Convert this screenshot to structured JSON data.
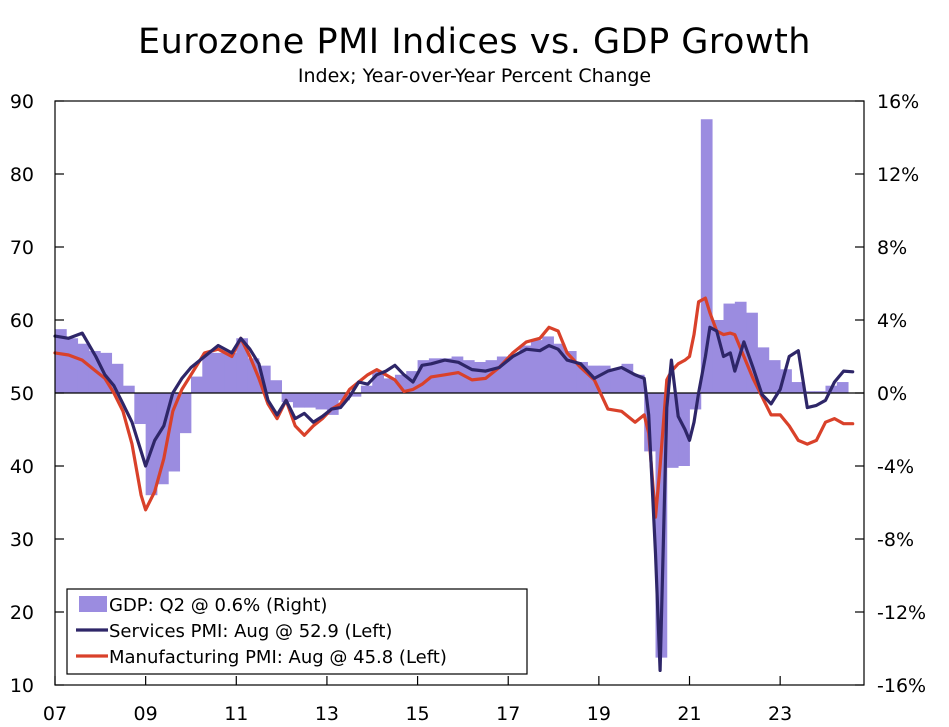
{
  "chart_data": {
    "type": "bar+line",
    "title": "Eurozone PMI Indices vs. GDP Growth",
    "subtitle": "Index; Year-over-Year Percent Change",
    "x_tick_labels": [
      "07",
      "09",
      "11",
      "13",
      "15",
      "17",
      "19",
      "21",
      "23"
    ],
    "x_tick_years": [
      2007,
      2009,
      2011,
      2013,
      2015,
      2017,
      2019,
      2021,
      2023
    ],
    "x_range": [
      2007.0,
      2024.85
    ],
    "left_axis": {
      "range": [
        10,
        90
      ],
      "ticks": [
        "10",
        "20",
        "30",
        "40",
        "50",
        "60",
        "70",
        "80",
        "90"
      ],
      "tick_values": [
        10,
        20,
        30,
        40,
        50,
        60,
        70,
        80,
        90
      ]
    },
    "right_axis": {
      "range": [
        -16,
        16
      ],
      "ticks": [
        "-16%",
        "-12%",
        "-8%",
        "-4%",
        "0%",
        "4%",
        "8%",
        "12%",
        "16%"
      ],
      "tick_values": [
        -16,
        -12,
        -8,
        -4,
        0,
        4,
        8,
        12,
        16
      ]
    },
    "reference_line_left": 50,
    "legend": {
      "position": "bottom-left",
      "entries": [
        "GDP: Q2 @ 0.6% (Right)",
        "Services PMI: Aug @ 52.9 (Left)",
        "Manufacturing PMI: Aug @ 45.8 (Left)"
      ]
    },
    "colors": {
      "gdp": "#9b8ce0",
      "services": "#2e2668",
      "manufacturing": "#d9412a"
    },
    "gdp": {
      "name": "GDP: Q2 @ 0.6% (Right)",
      "axis": "right",
      "quarters": [
        "07Q1",
        "07Q2",
        "07Q3",
        "07Q4",
        "08Q1",
        "08Q2",
        "08Q3",
        "08Q4",
        "09Q1",
        "09Q2",
        "09Q3",
        "09Q4",
        "10Q1",
        "10Q2",
        "10Q3",
        "10Q4",
        "11Q1",
        "11Q2",
        "11Q3",
        "11Q4",
        "12Q1",
        "12Q2",
        "12Q3",
        "12Q4",
        "13Q1",
        "13Q2",
        "13Q3",
        "13Q4",
        "14Q1",
        "14Q2",
        "14Q3",
        "14Q4",
        "15Q1",
        "15Q2",
        "15Q3",
        "15Q4",
        "16Q1",
        "16Q2",
        "16Q3",
        "16Q4",
        "17Q1",
        "17Q2",
        "17Q3",
        "17Q4",
        "18Q1",
        "18Q2",
        "18Q3",
        "18Q4",
        "19Q1",
        "19Q2",
        "19Q3",
        "19Q4",
        "20Q1",
        "20Q2",
        "20Q3",
        "20Q4",
        "21Q1",
        "21Q2",
        "21Q3",
        "21Q4",
        "22Q1",
        "22Q2",
        "22Q3",
        "22Q4",
        "23Q1",
        "23Q2",
        "23Q3",
        "23Q4",
        "24Q1",
        "24Q2"
      ],
      "values": [
        3.5,
        3.0,
        2.7,
        2.3,
        2.2,
        1.6,
        0.4,
        -1.7,
        -5.6,
        -5.0,
        -4.3,
        -2.2,
        0.9,
        2.2,
        2.2,
        2.2,
        3.0,
        1.9,
        1.5,
        0.7,
        -0.5,
        -0.8,
        -0.8,
        -0.9,
        -1.2,
        -0.4,
        -0.2,
        0.4,
        1.2,
        0.8,
        1.0,
        1.2,
        1.8,
        1.9,
        1.9,
        2.0,
        1.8,
        1.7,
        1.8,
        2.0,
        2.1,
        2.6,
        2.9,
        3.1,
        2.7,
        2.3,
        1.7,
        1.5,
        1.5,
        1.3,
        1.6,
        1.0,
        -3.2,
        -14.5,
        -4.1,
        -4.0,
        -0.9,
        15.0,
        4.0,
        4.9,
        5.0,
        4.4,
        2.5,
        1.8,
        1.3,
        0.6,
        0.1,
        0.1,
        0.4,
        0.6
      ]
    },
    "services": {
      "name": "Services PMI: Aug @ 52.9 (Left)",
      "axis": "left",
      "x": [
        2007.0,
        2007.3,
        2007.6,
        2007.9,
        2008.1,
        2008.3,
        2008.5,
        2008.7,
        2008.9,
        2009.0,
        2009.2,
        2009.4,
        2009.6,
        2009.8,
        2010.0,
        2010.3,
        2010.6,
        2010.9,
        2011.1,
        2011.3,
        2011.5,
        2011.7,
        2011.9,
        2012.1,
        2012.3,
        2012.5,
        2012.7,
        2012.9,
        2013.1,
        2013.3,
        2013.5,
        2013.7,
        2013.9,
        2014.1,
        2014.3,
        2014.5,
        2014.7,
        2014.9,
        2015.1,
        2015.3,
        2015.6,
        2015.9,
        2016.2,
        2016.5,
        2016.8,
        2017.1,
        2017.4,
        2017.7,
        2017.9,
        2018.1,
        2018.3,
        2018.6,
        2018.9,
        2019.2,
        2019.5,
        2019.8,
        2020.0,
        2020.1,
        2020.25,
        2020.35,
        2020.5,
        2020.6,
        2020.75,
        2020.9,
        2021.0,
        2021.1,
        2021.2,
        2021.35,
        2021.45,
        2021.6,
        2021.75,
        2021.9,
        2022.0,
        2022.2,
        2022.4,
        2022.6,
        2022.8,
        2023.0,
        2023.2,
        2023.4,
        2023.6,
        2023.8,
        2024.0,
        2024.2,
        2024.4,
        2024.6
      ],
      "values": [
        57.8,
        57.5,
        58.2,
        55.0,
        52.5,
        51.0,
        48.5,
        46.0,
        42.0,
        40.0,
        43.5,
        45.5,
        50.0,
        52.0,
        53.5,
        55.0,
        56.5,
        55.5,
        57.5,
        56.0,
        54.0,
        49.0,
        47.0,
        49.0,
        46.5,
        47.2,
        46.0,
        46.8,
        47.8,
        48.0,
        49.5,
        51.5,
        51.2,
        52.5,
        53.0,
        53.8,
        52.5,
        51.5,
        53.8,
        54.0,
        54.5,
        54.2,
        53.2,
        53.0,
        53.5,
        55.0,
        56.0,
        55.8,
        56.5,
        56.0,
        54.5,
        54.0,
        52.0,
        53.0,
        53.5,
        52.5,
        52.0,
        47.0,
        28.0,
        12.0,
        48.0,
        54.5,
        46.8,
        45.0,
        43.5,
        46.0,
        50.0,
        55.0,
        59.0,
        58.5,
        55.0,
        55.5,
        53.0,
        57.0,
        53.5,
        49.8,
        48.5,
        50.5,
        55.0,
        55.8,
        48.0,
        48.3,
        49.0,
        51.5,
        53.0,
        52.9
      ]
    },
    "manufacturing": {
      "name": "Manufacturing PMI: Aug @ 45.8 (Left)",
      "axis": "left",
      "x": [
        2007.0,
        2007.3,
        2007.6,
        2007.9,
        2008.1,
        2008.3,
        2008.5,
        2008.7,
        2008.9,
        2009.0,
        2009.2,
        2009.4,
        2009.6,
        2009.8,
        2010.0,
        2010.3,
        2010.6,
        2010.9,
        2011.1,
        2011.3,
        2011.5,
        2011.7,
        2011.9,
        2012.1,
        2012.3,
        2012.5,
        2012.7,
        2012.9,
        2013.1,
        2013.3,
        2013.5,
        2013.7,
        2013.9,
        2014.1,
        2014.3,
        2014.5,
        2014.7,
        2014.9,
        2015.1,
        2015.3,
        2015.6,
        2015.9,
        2016.2,
        2016.5,
        2016.8,
        2017.1,
        2017.4,
        2017.7,
        2017.9,
        2018.1,
        2018.3,
        2018.6,
        2018.9,
        2019.2,
        2019.5,
        2019.8,
        2020.0,
        2020.1,
        2020.25,
        2020.35,
        2020.5,
        2020.6,
        2020.75,
        2020.9,
        2021.0,
        2021.1,
        2021.2,
        2021.35,
        2021.45,
        2021.6,
        2021.75,
        2021.9,
        2022.0,
        2022.2,
        2022.4,
        2022.6,
        2022.8,
        2023.0,
        2023.2,
        2023.4,
        2023.6,
        2023.8,
        2024.0,
        2024.2,
        2024.4,
        2024.6
      ],
      "values": [
        55.5,
        55.2,
        54.5,
        53.0,
        52.0,
        50.0,
        47.5,
        43.0,
        36.0,
        34.0,
        36.5,
        41.0,
        47.5,
        50.5,
        52.5,
        55.5,
        56.0,
        55.0,
        57.5,
        55.0,
        52.0,
        48.5,
        46.5,
        49.0,
        45.5,
        44.2,
        45.5,
        46.5,
        47.8,
        48.5,
        50.5,
        51.5,
        52.5,
        53.2,
        52.5,
        51.8,
        50.2,
        50.5,
        51.2,
        52.2,
        52.5,
        52.8,
        51.8,
        52.0,
        53.5,
        55.5,
        57.0,
        57.5,
        59.0,
        58.5,
        55.5,
        53.5,
        51.8,
        47.8,
        47.5,
        46.0,
        47.0,
        44.5,
        33.0,
        40.0,
        51.8,
        53.0,
        54.0,
        54.5,
        55.0,
        58.0,
        62.5,
        63.0,
        61.0,
        58.5,
        58.0,
        58.2,
        58.0,
        55.0,
        52.0,
        49.5,
        47.0,
        47.0,
        45.5,
        43.5,
        43.0,
        43.5,
        46.0,
        46.5,
        45.8,
        45.8
      ]
    }
  }
}
